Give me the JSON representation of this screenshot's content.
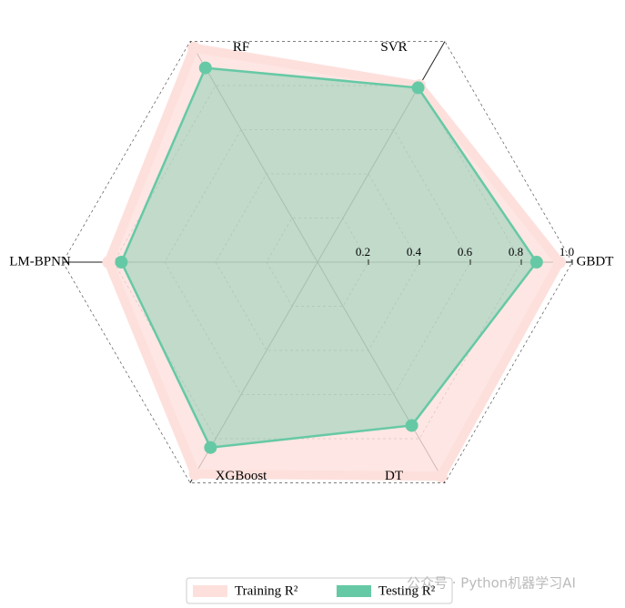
{
  "chart_data": {
    "type": "radar",
    "categories": [
      "GBDT",
      "SVR",
      "RF",
      "LM-BPNN",
      "XGBoost",
      "DT"
    ],
    "series": [
      {
        "name": "Training R²",
        "color": "#fde0dc",
        "values": [
          0.95,
          0.8,
          0.97,
          0.82,
          0.96,
          0.97
        ]
      },
      {
        "name": "Testing R²",
        "color": "#66c9a5",
        "values": [
          0.86,
          0.79,
          0.88,
          0.77,
          0.84,
          0.74
        ]
      }
    ],
    "ylim": [
      0,
      1
    ],
    "yticks": [
      0.2,
      0.4,
      0.6,
      0.8,
      {
        "value": 1,
        "label": "1.0"
      }
    ],
    "grid": true,
    "legend": "bottom"
  },
  "watermark": "公众号 · Python机器学习AI"
}
